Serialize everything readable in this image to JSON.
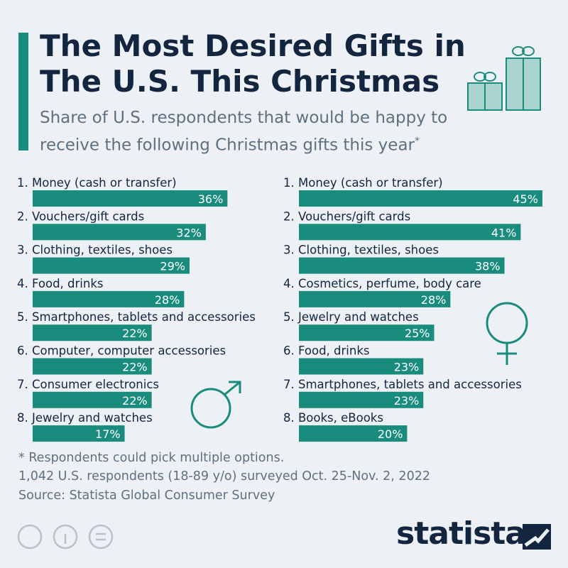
{
  "title": "The Most Desired Gifts in The U.S. This Christmas",
  "subtitle": "Share of U.S. respondents that would be happy to receive the following Christmas gifts this year",
  "subtitle_mark": "*",
  "footnotes": [
    "* Respondents could pick multiple options.",
    "1,042 U.S. respondents (18-89 y/o) surveyed Oct. 25-Nov. 2, 2022",
    "Source: Statista Global Consumer Survey"
  ],
  "logo": "statista",
  "chart_data": [
    {
      "type": "bar",
      "orientation": "horizontal",
      "color": "#1a8c7d",
      "categories": [
        "1. Money (cash or transfer)",
        "2. Vouchers/gift cards",
        "3. Clothing, textiles, shoes",
        "4. Food, drinks",
        "5. Smartphones, tablets and accessories",
        "6. Computer, computer accessories",
        "7. Consumer electronics",
        "8. Jewelry and watches"
      ],
      "values": [
        36,
        32,
        29,
        28,
        22,
        22,
        22,
        17
      ],
      "value_labels": [
        "36%",
        "32%",
        "29%",
        "28%",
        "22%",
        "22%",
        "22%",
        "17%"
      ]
    },
    {
      "type": "bar",
      "orientation": "horizontal",
      "color": "#1a8c7d",
      "categories": [
        "1. Money (cash or transfer)",
        "2. Vouchers/gift cards",
        "3. Clothing, textiles, shoes",
        "4. Cosmetics, perfume, body care",
        "5. Jewelry and watches",
        "6. Food, drinks",
        "7. Smartphones, tablets and accessories",
        "8. Books, eBooks"
      ],
      "values": [
        45,
        41,
        38,
        28,
        25,
        23,
        23,
        20
      ],
      "value_labels": [
        "45%",
        "41%",
        "38%",
        "28%",
        "25%",
        "23%",
        "23%",
        "20%"
      ]
    }
  ]
}
